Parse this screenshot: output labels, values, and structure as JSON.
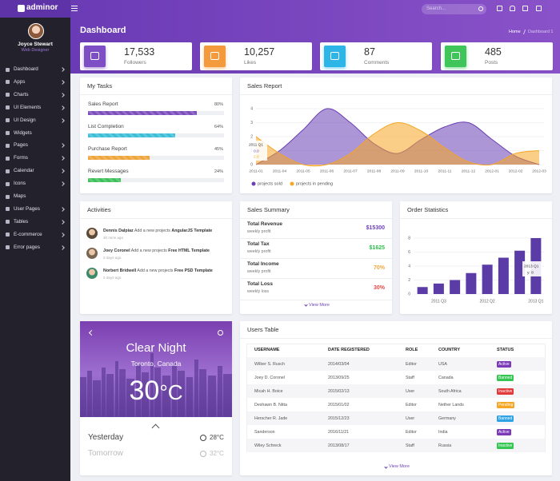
{
  "brand": "adminor",
  "search_placeholder": "Search...",
  "profile": {
    "name": "Joyce Stewart",
    "role": "Web Designer"
  },
  "menu": [
    {
      "label": "Dashboard",
      "submenu": true
    },
    {
      "label": "Apps",
      "submenu": true
    },
    {
      "label": "Charts",
      "submenu": true
    },
    {
      "label": "UI Elements",
      "submenu": true
    },
    {
      "label": "UI Design",
      "submenu": true
    },
    {
      "label": "Widgets",
      "submenu": false
    },
    {
      "label": "Pages",
      "submenu": true
    },
    {
      "label": "Forms",
      "submenu": true
    },
    {
      "label": "Calendar",
      "submenu": true
    },
    {
      "label": "Icons",
      "submenu": true
    },
    {
      "label": "Maps",
      "submenu": false
    },
    {
      "label": "User Pages",
      "submenu": true
    },
    {
      "label": "Tables",
      "submenu": true
    },
    {
      "label": "E-commerce",
      "submenu": true
    },
    {
      "label": "Error pages",
      "submenu": true
    }
  ],
  "page": {
    "title": "Dashboard",
    "breadcrumb": [
      "Home",
      "Dashboard 1"
    ]
  },
  "stats": [
    {
      "value": "17,533",
      "label": "Followers",
      "color": "#7e4fc4"
    },
    {
      "value": "10,257",
      "label": "Likes",
      "color": "#f39b3c"
    },
    {
      "value": "87",
      "label": "Comments",
      "color": "#2eb5e8"
    },
    {
      "value": "485",
      "label": "Posts",
      "color": "#3fc55a"
    }
  ],
  "tasks": {
    "title": "My Tasks",
    "items": [
      {
        "name": "Sales Report",
        "value": 80,
        "label": "80%",
        "color": "#7c4dbd"
      },
      {
        "name": "List Completion",
        "value": 64,
        "label": "64%",
        "color": "#3bbfd8"
      },
      {
        "name": "Purchase Report",
        "value": 45,
        "label": "45%",
        "color": "#f0a53a"
      },
      {
        "name": "Revert Messages",
        "value": 24,
        "label": "24%",
        "color": "#3cc15a"
      }
    ]
  },
  "chart_data": [
    {
      "type": "area",
      "title": "Sales Report",
      "categories": [
        "2011-01",
        "2011-04",
        "2011-05",
        "2011-06",
        "2011-07",
        "2011-08",
        "2011-09",
        "2011-10",
        "2011-11",
        "2011-12",
        "2012-01",
        "2012-02",
        "2012-03"
      ],
      "series": [
        {
          "name": "projects sold",
          "color": "#6a3fb5",
          "values": [
            0,
            1,
            2.5,
            4,
            3,
            1.5,
            0.8,
            1.8,
            2.7,
            3,
            1.8,
            0.6,
            0
          ]
        },
        {
          "name": "projects in pending",
          "color": "#f5a623",
          "values": [
            2,
            0.8,
            0,
            0,
            0.8,
            2.2,
            3,
            2.4,
            1.2,
            0.2,
            0,
            0.8,
            1
          ]
        }
      ],
      "ylim": [
        0,
        4
      ],
      "yticks": [
        0,
        1,
        2,
        3,
        4
      ],
      "grid": true,
      "tooltip": {
        "title": "2011 Q1",
        "lines": [
          "0.0",
          "2.0"
        ]
      }
    },
    {
      "type": "bar",
      "title": "Order Statistics",
      "categories": [
        null,
        "2011 Q3",
        null,
        null,
        "2012 Q2",
        null,
        null,
        "2013 Q1"
      ],
      "values": [
        1,
        1.5,
        2,
        3,
        4.2,
        5.2,
        6.2,
        8
      ],
      "color": "#5b3ba6",
      "ylim": [
        0,
        8
      ],
      "yticks": [
        0,
        2,
        4,
        6,
        8
      ],
      "grid": true,
      "tooltip": {
        "title": "2013 Q1",
        "text": "y: 8"
      }
    }
  ],
  "activities": {
    "title": "Activities",
    "items": [
      {
        "name": "Dennis Dalpiaz",
        "action": "Add a new projects",
        "item": "AngularJS Template",
        "time": "30 mins ago"
      },
      {
        "name": "Joey Coronel",
        "action": "Add a new projects",
        "item": "Free HTML Template",
        "time": "2 days ago"
      },
      {
        "name": "Norbert Bridwell",
        "action": "Add a new projects",
        "item": "Free PSD Template",
        "time": "2 days ago"
      }
    ]
  },
  "sales_summary": {
    "title": "Sales Summary",
    "rows": [
      {
        "label": "Total Revenue",
        "sub": "weekly profit",
        "value": "$15300",
        "color": "#6a3fb5"
      },
      {
        "label": "Total Tax",
        "sub": "weekly profit",
        "value": "$1625",
        "color": "#2dbb4c"
      },
      {
        "label": "Total Income",
        "sub": "weekly profit",
        "value": "70%",
        "color": "#f0a53a"
      },
      {
        "label": "Total Loss",
        "sub": "weekly loss",
        "value": "30%",
        "color": "#e84545"
      }
    ],
    "more": "View More"
  },
  "weather": {
    "condition": "Clear Night",
    "location": "Toronto, Canada",
    "temp": "30",
    "unit": "°C",
    "days": [
      {
        "day": "Yesterday",
        "temp": "28°C"
      },
      {
        "day": "Tomorrow",
        "temp": "32°C"
      }
    ]
  },
  "users": {
    "title": "Users Table",
    "columns": [
      "USERNAME",
      "DATE REGISTERED",
      "ROLE",
      "COUNTRY",
      "STATUS"
    ],
    "rows": [
      [
        "Wilber S. Rusch",
        "2014/03/04",
        "Editor",
        "USA",
        "Active"
      ],
      [
        "Joey D. Coronel",
        "2013/09/25",
        "Staff",
        "Canada",
        "Banned"
      ],
      [
        "Micah H. Boice",
        "2015/02/13",
        "User",
        "South Africa",
        "Inactive"
      ],
      [
        "Deshawn B. Nitta",
        "2015/01/02",
        "Editor",
        "Nether Lands",
        "Pending"
      ],
      [
        "Herscher R. Jade",
        "2015/12/23",
        "User",
        "Germany",
        "Banned"
      ],
      [
        "Sanderson",
        "2016/11/21",
        "Editor",
        "India",
        "Active"
      ],
      [
        "Wiley Schreck",
        "2013/08/17",
        "Staff",
        "Russia",
        "Inactive"
      ]
    ],
    "status_colors": [
      "#7c3ab9",
      "#35c653",
      "#e03a3a",
      "#f5a623",
      "#2ea3e6",
      "#7c3ab9",
      "#35c653"
    ],
    "more": "View More"
  }
}
